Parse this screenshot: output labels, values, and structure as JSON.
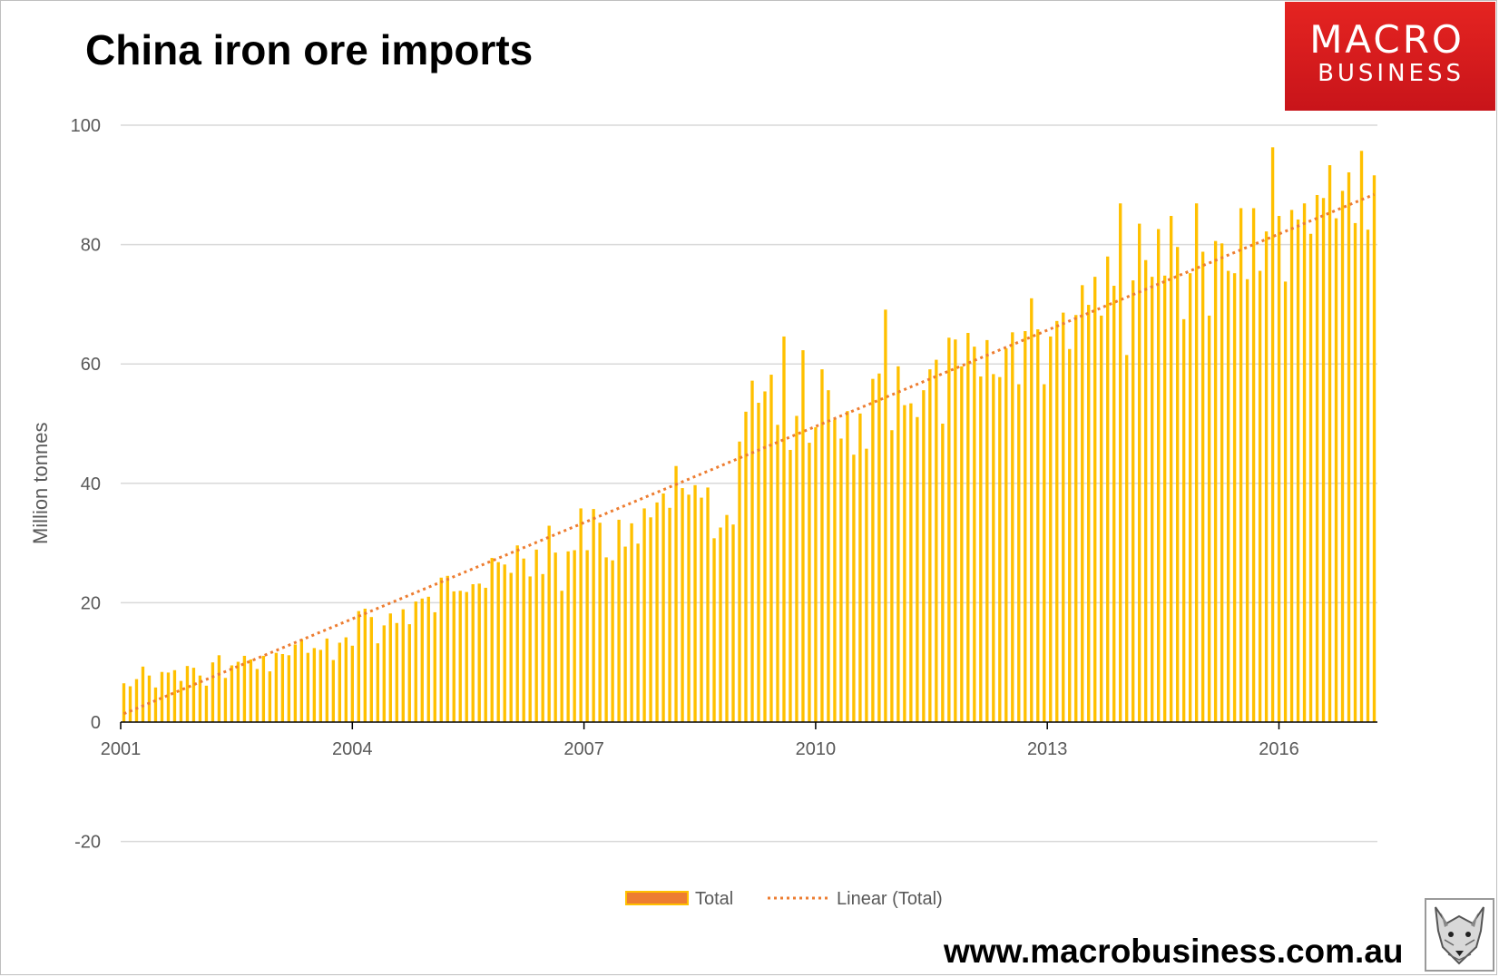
{
  "header": {
    "title": "China iron ore imports"
  },
  "logo": {
    "line1": "MACRO",
    "line2": "BUSINESS"
  },
  "footer": {
    "url": "www.macrobusiness.com.au"
  },
  "colors": {
    "bar": "#ffc000",
    "trend": "#ed7d31",
    "legend_patch": "#ed7d31",
    "gridline": "#d9d9d9",
    "axis_text": "#595959"
  },
  "chart_data": {
    "type": "bar",
    "title": "China iron ore imports",
    "xlabel": "",
    "ylabel": "Million tonnes",
    "ylim": [
      -20,
      100
    ],
    "yticks": [
      -20,
      0,
      20,
      40,
      60,
      80,
      100
    ],
    "x_tick_labels": [
      "2001",
      "2004",
      "2007",
      "2010",
      "2013",
      "2016"
    ],
    "x_start": "2001-01",
    "x_end": "2017-04",
    "grid": "horizontal",
    "legend_position": "bottom",
    "legend": [
      "Total",
      "Linear (Total)"
    ],
    "series": [
      {
        "name": "Total",
        "type": "bar",
        "values": [
          6.5,
          6,
          7.2,
          9.3,
          7.8,
          5.8,
          8.4,
          8.3,
          8.7,
          6.9,
          9.4,
          9.1,
          7.8,
          6.1,
          10,
          11.2,
          7.4,
          9.5,
          10.1,
          11.1,
          10.5,
          8.9,
          11.1,
          8.5,
          11.6,
          11.4,
          11.2,
          13,
          13.9,
          11.6,
          12.4,
          12.1,
          14,
          10.4,
          13.3,
          14.2,
          12.8,
          18.6,
          19,
          17.6,
          13.2,
          16.2,
          18.2,
          16.6,
          18.9,
          16.4,
          20.2,
          20.7,
          21,
          18.4,
          24.2,
          24.5,
          21.9,
          22,
          21.8,
          23.1,
          23.2,
          22.5,
          27.5,
          26.8,
          26.4,
          25,
          29.6,
          27.4,
          24.4,
          28.9,
          24.8,
          32.9,
          28.4,
          22,
          28.6,
          28.8,
          35.8,
          28.8,
          35.7,
          33.4,
          27.6,
          27.1,
          33.9,
          29.4,
          33.3,
          29.9,
          35.8,
          34.3,
          36.8,
          38.3,
          35.9,
          42.9,
          39.2,
          38.1,
          39.7,
          37.6,
          39.3,
          30.8,
          32.6,
          34.7,
          33.1,
          47,
          52,
          57.2,
          53.5,
          55.4,
          58.2,
          49.8,
          64.6,
          45.6,
          51.3,
          62.3,
          46.8,
          49.4,
          59.1,
          55.6,
          50.7,
          47.5,
          52.1,
          44.8,
          51.7,
          45.8,
          57.5,
          58.4,
          69.1,
          48.9,
          59.6,
          53.1,
          53.4,
          51.1,
          55.6,
          59.1,
          60.7,
          50,
          64.4,
          64.1,
          59.6,
          65.2,
          62.9,
          57.9,
          64,
          58.3,
          57.8,
          62.6,
          65.3,
          56.6,
          65.5,
          71,
          65.8,
          56.6,
          64.6,
          67.2,
          68.6,
          62.5,
          68.2,
          73.2,
          69.9,
          74.6,
          68.1,
          78,
          73.1,
          86.9,
          61.5,
          74,
          83.5,
          77.4,
          74.6,
          82.6,
          74.8,
          84.8,
          79.6,
          67.5,
          75.2,
          86.9,
          78.8,
          68.1,
          80.6,
          80.2,
          75.6,
          75.2,
          86.1,
          74.2,
          86.1,
          75.6,
          82.2,
          96.3,
          84.8,
          73.8,
          85.8,
          84.2,
          86.9,
          81.8,
          88.3,
          87.8,
          93.3,
          84.4,
          89,
          92.1,
          83.6,
          95.7,
          82.5,
          91.6
        ]
      },
      {
        "name": "Linear (Total)",
        "type": "linear-trend",
        "values": [
          1.4,
          88.4
        ]
      }
    ]
  }
}
